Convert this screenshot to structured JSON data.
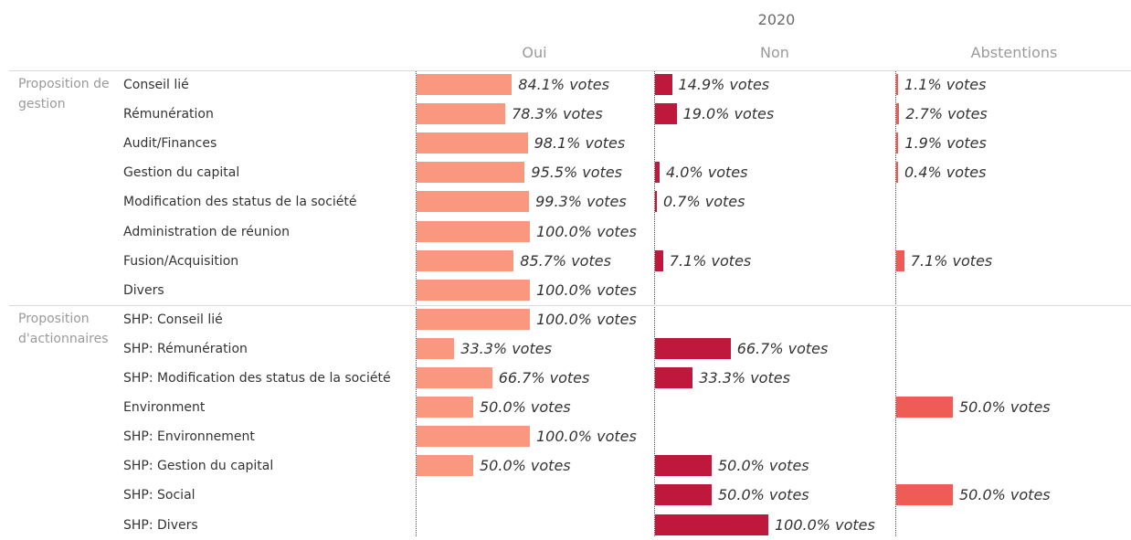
{
  "year": "2020",
  "colors": {
    "oui": "#f9977f",
    "non": "#c0183c",
    "abstentions": "#ef5c55"
  },
  "chart_data": {
    "type": "bar",
    "orientation": "horizontal",
    "header": "2020",
    "columns": [
      "Oui",
      "Non",
      "Abstentions"
    ],
    "value_suffix": "% votes",
    "xlim": [
      0,
      100
    ],
    "groups": [
      {
        "name": "Proposition de gestion",
        "rows": [
          {
            "label": "Conseil lié",
            "oui": 84.1,
            "non": 14.9,
            "abstentions": 1.1
          },
          {
            "label": "Rémunération",
            "oui": 78.3,
            "non": 19.0,
            "abstentions": 2.7
          },
          {
            "label": "Audit/Finances",
            "oui": 98.1,
            "non": null,
            "abstentions": 1.9
          },
          {
            "label": "Gestion du capital",
            "oui": 95.5,
            "non": 4.0,
            "abstentions": 0.4
          },
          {
            "label": "Modification des status de la société",
            "oui": 99.3,
            "non": 0.7,
            "abstentions": null
          },
          {
            "label": "Administration de réunion",
            "oui": 100.0,
            "non": null,
            "abstentions": null
          },
          {
            "label": "Fusion/Acquisition",
            "oui": 85.7,
            "non": 7.1,
            "abstentions": 7.1
          },
          {
            "label": "Divers",
            "oui": 100.0,
            "non": null,
            "abstentions": null
          }
        ]
      },
      {
        "name": "Proposition d'actionnaires",
        "rows": [
          {
            "label": "SHP: Conseil lié",
            "oui": 100.0,
            "non": null,
            "abstentions": null
          },
          {
            "label": "SHP: Rémunération",
            "oui": 33.3,
            "non": 66.7,
            "abstentions": null
          },
          {
            "label": "SHP: Modification des status de la société",
            "oui": 66.7,
            "non": 33.3,
            "abstentions": null
          },
          {
            "label": "Environment",
            "oui": 50.0,
            "non": null,
            "abstentions": 50.0
          },
          {
            "label": "SHP: Environnement",
            "oui": 100.0,
            "non": null,
            "abstentions": null
          },
          {
            "label": "SHP: Gestion du capital",
            "oui": 50.0,
            "non": 50.0,
            "abstentions": null
          },
          {
            "label": "SHP: Social",
            "oui": null,
            "non": 50.0,
            "abstentions": 50.0
          },
          {
            "label": "SHP: Divers",
            "oui": null,
            "non": 100.0,
            "abstentions": null
          }
        ]
      }
    ]
  }
}
